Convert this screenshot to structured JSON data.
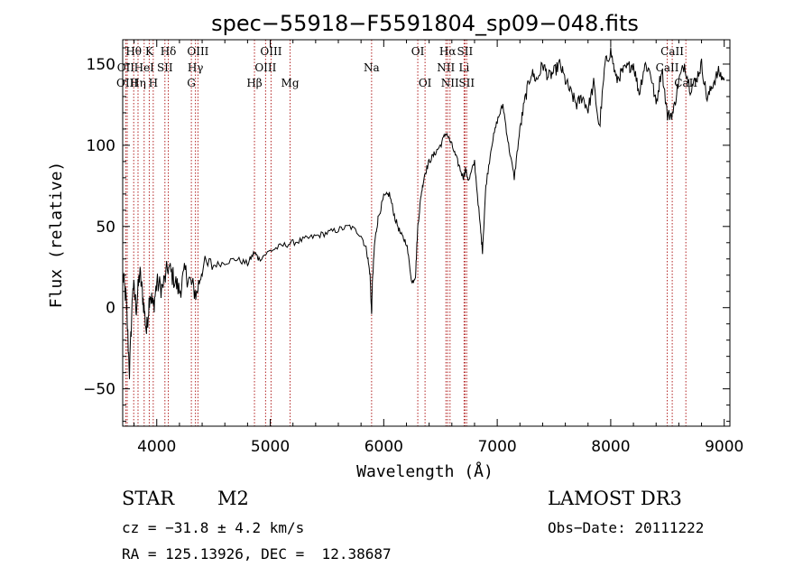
{
  "chart_data": {
    "type": "line",
    "title": "spec−55918−F5591804_sp09−048.fits",
    "xlabel": "Wavelength (Å)",
    "ylabel": "Flux (relative)",
    "xlim": [
      3700,
      9050
    ],
    "ylim": [
      -73,
      165
    ],
    "x_ticks": [
      4000,
      5000,
      6000,
      7000,
      8000,
      9000
    ],
    "y_ticks": [
      -50,
      0,
      50,
      100,
      150
    ],
    "y_tick_labels": [
      "−50",
      "0",
      "50",
      "100",
      "150"
    ],
    "line_color": "#b22222",
    "spectrum": {
      "x": [
        3700,
        3730,
        3760,
        3790,
        3820,
        3850,
        3880,
        3910,
        3940,
        3970,
        4000,
        4050,
        4100,
        4150,
        4200,
        4250,
        4300,
        4350,
        4400,
        4500,
        4600,
        4700,
        4800,
        4860,
        4900,
        5000,
        5100,
        5200,
        5300,
        5400,
        5500,
        5600,
        5700,
        5800,
        5850,
        5880,
        5893,
        5900,
        5920,
        5950,
        6000,
        6050,
        6100,
        6150,
        6200,
        6250,
        6280,
        6300,
        6330,
        6360,
        6400,
        6450,
        6500,
        6550,
        6600,
        6650,
        6700,
        6720,
        6750,
        6800,
        6850,
        6870,
        6900,
        6950,
        7000,
        7050,
        7100,
        7150,
        7200,
        7250,
        7300,
        7350,
        7400,
        7450,
        7500,
        7550,
        7600,
        7650,
        7700,
        7750,
        7800,
        7850,
        7900,
        7950,
        8000,
        8050,
        8100,
        8150,
        8200,
        8250,
        8300,
        8350,
        8400,
        8450,
        8500,
        8550,
        8600,
        8650,
        8700,
        8750,
        8800,
        8850,
        8900,
        8950,
        9000
      ],
      "y": [
        20,
        5,
        -40,
        15,
        0,
        22,
        5,
        -15,
        10,
        0,
        15,
        12,
        25,
        18,
        10,
        22,
        15,
        8,
        25,
        26,
        28,
        30,
        27,
        34,
        30,
        35,
        38,
        40,
        42,
        44,
        46,
        48,
        50,
        45,
        35,
        20,
        -5,
        15,
        40,
        55,
        68,
        70,
        55,
        45,
        40,
        15,
        20,
        50,
        70,
        82,
        90,
        95,
        100,
        108,
        100,
        90,
        80,
        85,
        78,
        90,
        50,
        35,
        75,
        100,
        115,
        125,
        100,
        80,
        110,
        130,
        145,
        140,
        150,
        142,
        145,
        150,
        140,
        132,
        125,
        130,
        122,
        138,
        110,
        150,
        158,
        140,
        145,
        148,
        150,
        132,
        150,
        145,
        125,
        148,
        118,
        120,
        140,
        150,
        135,
        140,
        150,
        128,
        138,
        145,
        140
      ]
    },
    "lines": [
      {
        "label": "Hθ",
        "x": 3797,
        "row": 0
      },
      {
        "label": "OII",
        "x": 3727,
        "row": 1
      },
      {
        "label": "OIII",
        "x": 3740,
        "row": 2
      },
      {
        "label": "K",
        "x": 3934,
        "row": 0
      },
      {
        "label": "HeI",
        "x": 3889,
        "row": 1
      },
      {
        "label": "Hη",
        "x": 3835,
        "row": 2
      },
      {
        "label": "Hδ",
        "x": 4102,
        "row": 0
      },
      {
        "label": "SII",
        "x": 4072,
        "row": 1
      },
      {
        "label": "H",
        "x": 3969,
        "row": 2
      },
      {
        "label": "OIII",
        "x": 4363,
        "row": 0
      },
      {
        "label": "Hγ",
        "x": 4341,
        "row": 1
      },
      {
        "label": "G",
        "x": 4305,
        "row": 2
      },
      {
        "label": "OIII",
        "x": 5007,
        "row": 0
      },
      {
        "label": "OIII",
        "x": 4959,
        "row": 1
      },
      {
        "label": "Hβ",
        "x": 4861,
        "row": 2
      },
      {
        "label": "Mg",
        "x": 5175,
        "row": 2
      },
      {
        "label": "Na",
        "x": 5893,
        "row": 1
      },
      {
        "label": "OI",
        "x": 6300,
        "row": 0
      },
      {
        "label": "OI",
        "x": 6364,
        "row": 2
      },
      {
        "label": "Hα",
        "x": 6563,
        "row": 0
      },
      {
        "label": "SII",
        "x": 6716,
        "row": 0
      },
      {
        "label": "NII",
        "x": 6548,
        "row": 1
      },
      {
        "label": "Li",
        "x": 6708,
        "row": 1
      },
      {
        "label": "NII",
        "x": 6584,
        "row": 2
      },
      {
        "label": "SII",
        "x": 6731,
        "row": 2
      },
      {
        "label": "CaII",
        "x": 8542,
        "row": 0
      },
      {
        "label": "CaII",
        "x": 8498,
        "row": 1
      },
      {
        "label": "CaII",
        "x": 8662,
        "row": 2
      }
    ]
  },
  "info": {
    "object_class": "STAR",
    "subclass": "M2",
    "survey": "LAMOST DR3",
    "cz": "cz = −31.8 ± 4.2 km/s",
    "obs_date": "Obs−Date: 20111222",
    "coords": "RA = 125.13926, DEC =  12.38687"
  }
}
